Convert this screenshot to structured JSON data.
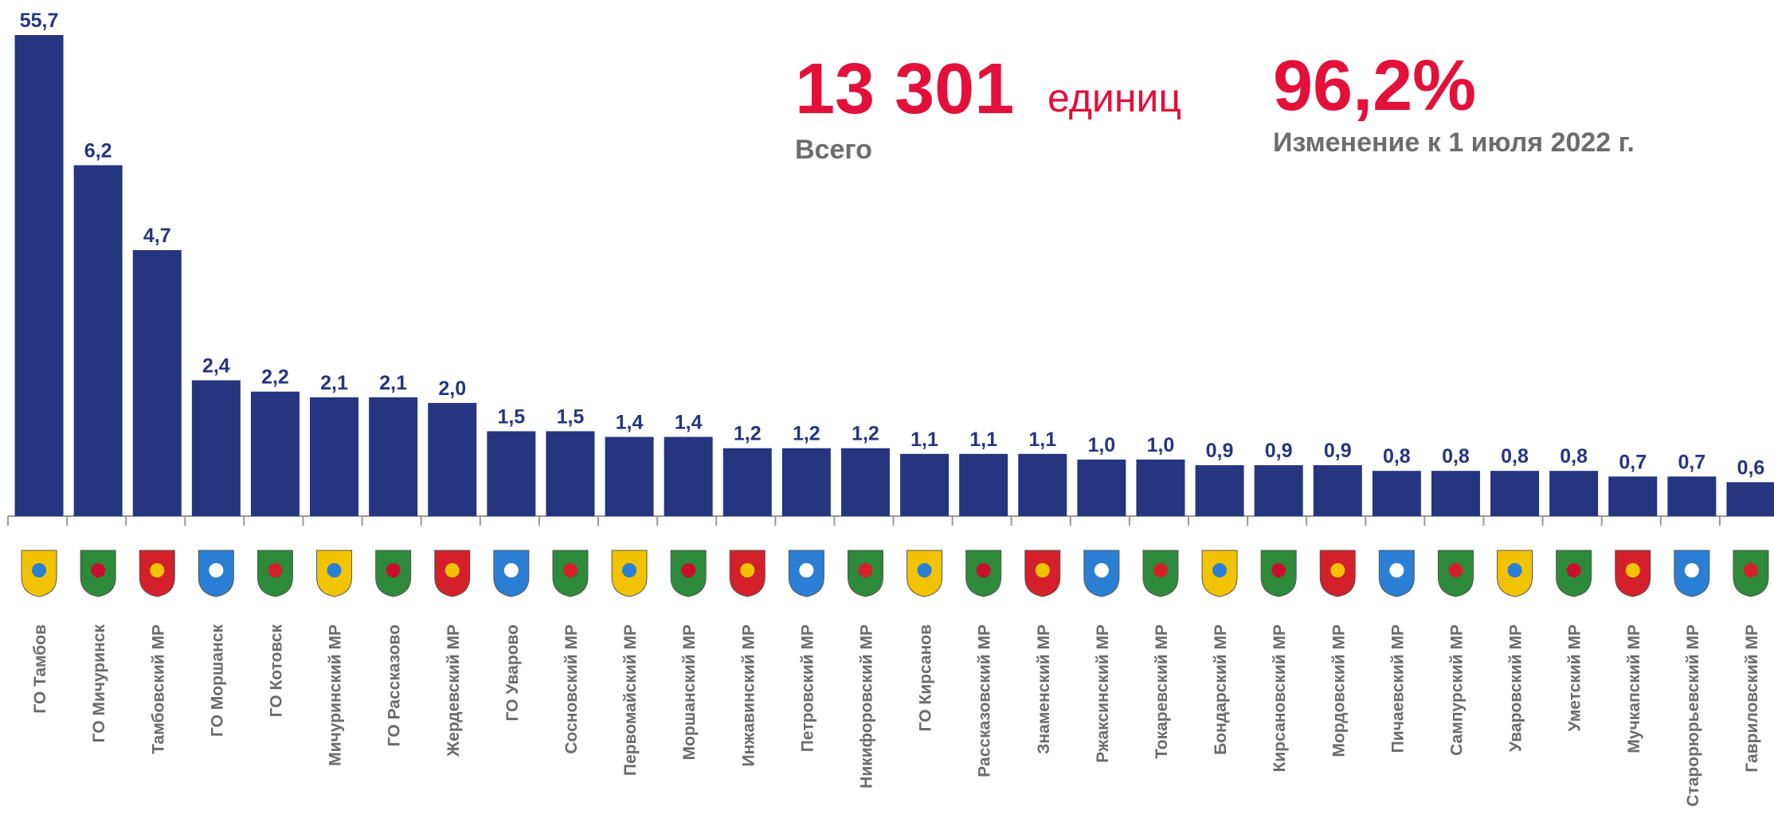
{
  "chart_data": {
    "type": "bar",
    "color": "#263580",
    "categories": [
      "ГО Тамбов",
      "ГО Мичуринск",
      "Тамбовский  МР",
      "ГО Моршанск",
      "ГО Котовск",
      "Мичуринский МР",
      "ГО Рассказово",
      "Жердевский  МР",
      "ГО Уварово",
      "Сосновский МР",
      "Первомайский МР",
      "Моршанский МР",
      "Инжавинский МР",
      "Петровский  МР",
      "Никифоровский МР",
      "ГО Кирсанов",
      "Рассказовский МР",
      "Знаменский МР",
      "Ржаксинский МР",
      "Токаревский МР",
      "Бондарский МР",
      "Кирсановский МР",
      "Мордовский МР",
      "Пичаевский МР",
      "Сампурский МР",
      "Уваровский МР",
      "Уметский МР",
      "Мучкапский МР",
      "Старорюрьевский МР",
      "Гавриловский МР"
    ],
    "values": [
      55.7,
      6.2,
      4.7,
      2.4,
      2.2,
      2.1,
      2.1,
      2.0,
      1.5,
      1.5,
      1.4,
      1.4,
      1.2,
      1.2,
      1.2,
      1.1,
      1.1,
      1.1,
      1.0,
      1.0,
      0.9,
      0.9,
      0.9,
      0.8,
      0.8,
      0.8,
      0.8,
      0.7,
      0.7,
      0.6
    ],
    "value_labels": [
      "55,7",
      "6,2",
      "4,7",
      "2,4",
      "2,2",
      "2,1",
      "2,1",
      "2,0",
      "1,5",
      "1,5",
      "1,4",
      "1,4",
      "1,2",
      "1,2",
      "1,2",
      "1,1",
      "1,1",
      "1,1",
      "1,0",
      "1,0",
      "0,9",
      "0,9",
      "0,9",
      "0,8",
      "0,8",
      "0,8",
      "0,8",
      "0,7",
      "0,7",
      "0,6"
    ],
    "ylim": [
      0,
      8.5
    ],
    "annotations": {
      "total": "13 301",
      "unit": "единиц",
      "total_caption": "Всего",
      "change": "96,2%",
      "change_caption": "Изменение к 1 июля 2022 г."
    }
  }
}
